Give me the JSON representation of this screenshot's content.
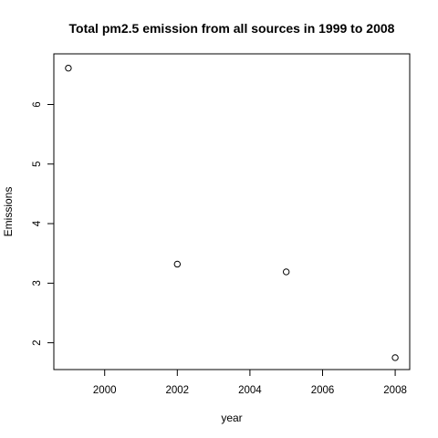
{
  "chart_data": {
    "type": "scatter",
    "title": "Total pm2.5 emission from all sources in 1999 to 2008",
    "xlabel": "year",
    "ylabel": "Emissions",
    "x_ticks": [
      2000,
      2002,
      2004,
      2006,
      2008
    ],
    "y_ticks": [
      2,
      3,
      4,
      5,
      6
    ],
    "xlim": [
      1998.6,
      2008.4
    ],
    "ylim": [
      1.55,
      6.85
    ],
    "grid": false,
    "marker": "open-circle",
    "series": [
      {
        "x": [
          1999,
          2002,
          2005,
          2008
        ],
        "y": [
          6.61,
          3.32,
          3.19,
          1.75
        ]
      }
    ]
  }
}
